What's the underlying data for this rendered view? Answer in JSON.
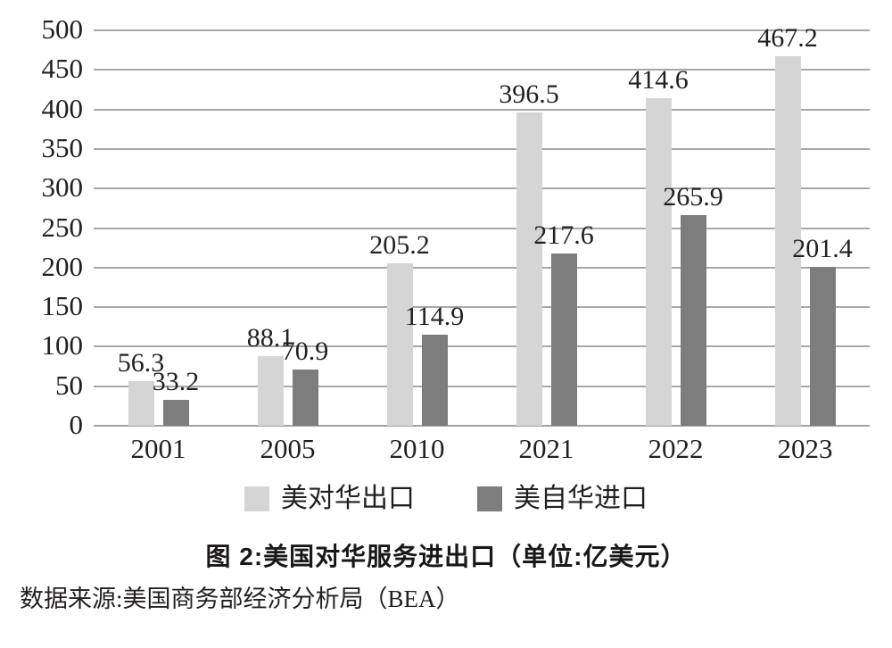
{
  "chart_data": {
    "type": "bar",
    "categories": [
      "2001",
      "2005",
      "2010",
      "2021",
      "2022",
      "2023"
    ],
    "series": [
      {
        "name": "美对华出口",
        "color": "#d5d5d5",
        "values": [
          56.3,
          88.1,
          205.2,
          396.5,
          414.6,
          467.2
        ]
      },
      {
        "name": "美自华进口",
        "color": "#7d7d7d",
        "values": [
          33.2,
          70.9,
          114.9,
          217.6,
          265.9,
          201.4
        ]
      }
    ],
    "title": "图 2:美国对华服务进出口（单位:亿美元）",
    "xlabel": "",
    "ylabel": "",
    "ylim": [
      0,
      500
    ],
    "yticks": [
      0,
      50,
      100,
      150,
      200,
      250,
      300,
      350,
      400,
      450,
      500
    ],
    "grid": true,
    "legend_position": "bottom",
    "value_labels": true
  },
  "caption": {
    "title": "图 2:美国对华服务进出口（单位:亿美元）",
    "source": "数据来源:美国商务部经济分析局（BEA）"
  },
  "colors": {
    "export_bar": "#d5d5d5",
    "import_bar": "#7d7d7d",
    "gridline": "#a8a8a8",
    "text": "#231f20"
  }
}
